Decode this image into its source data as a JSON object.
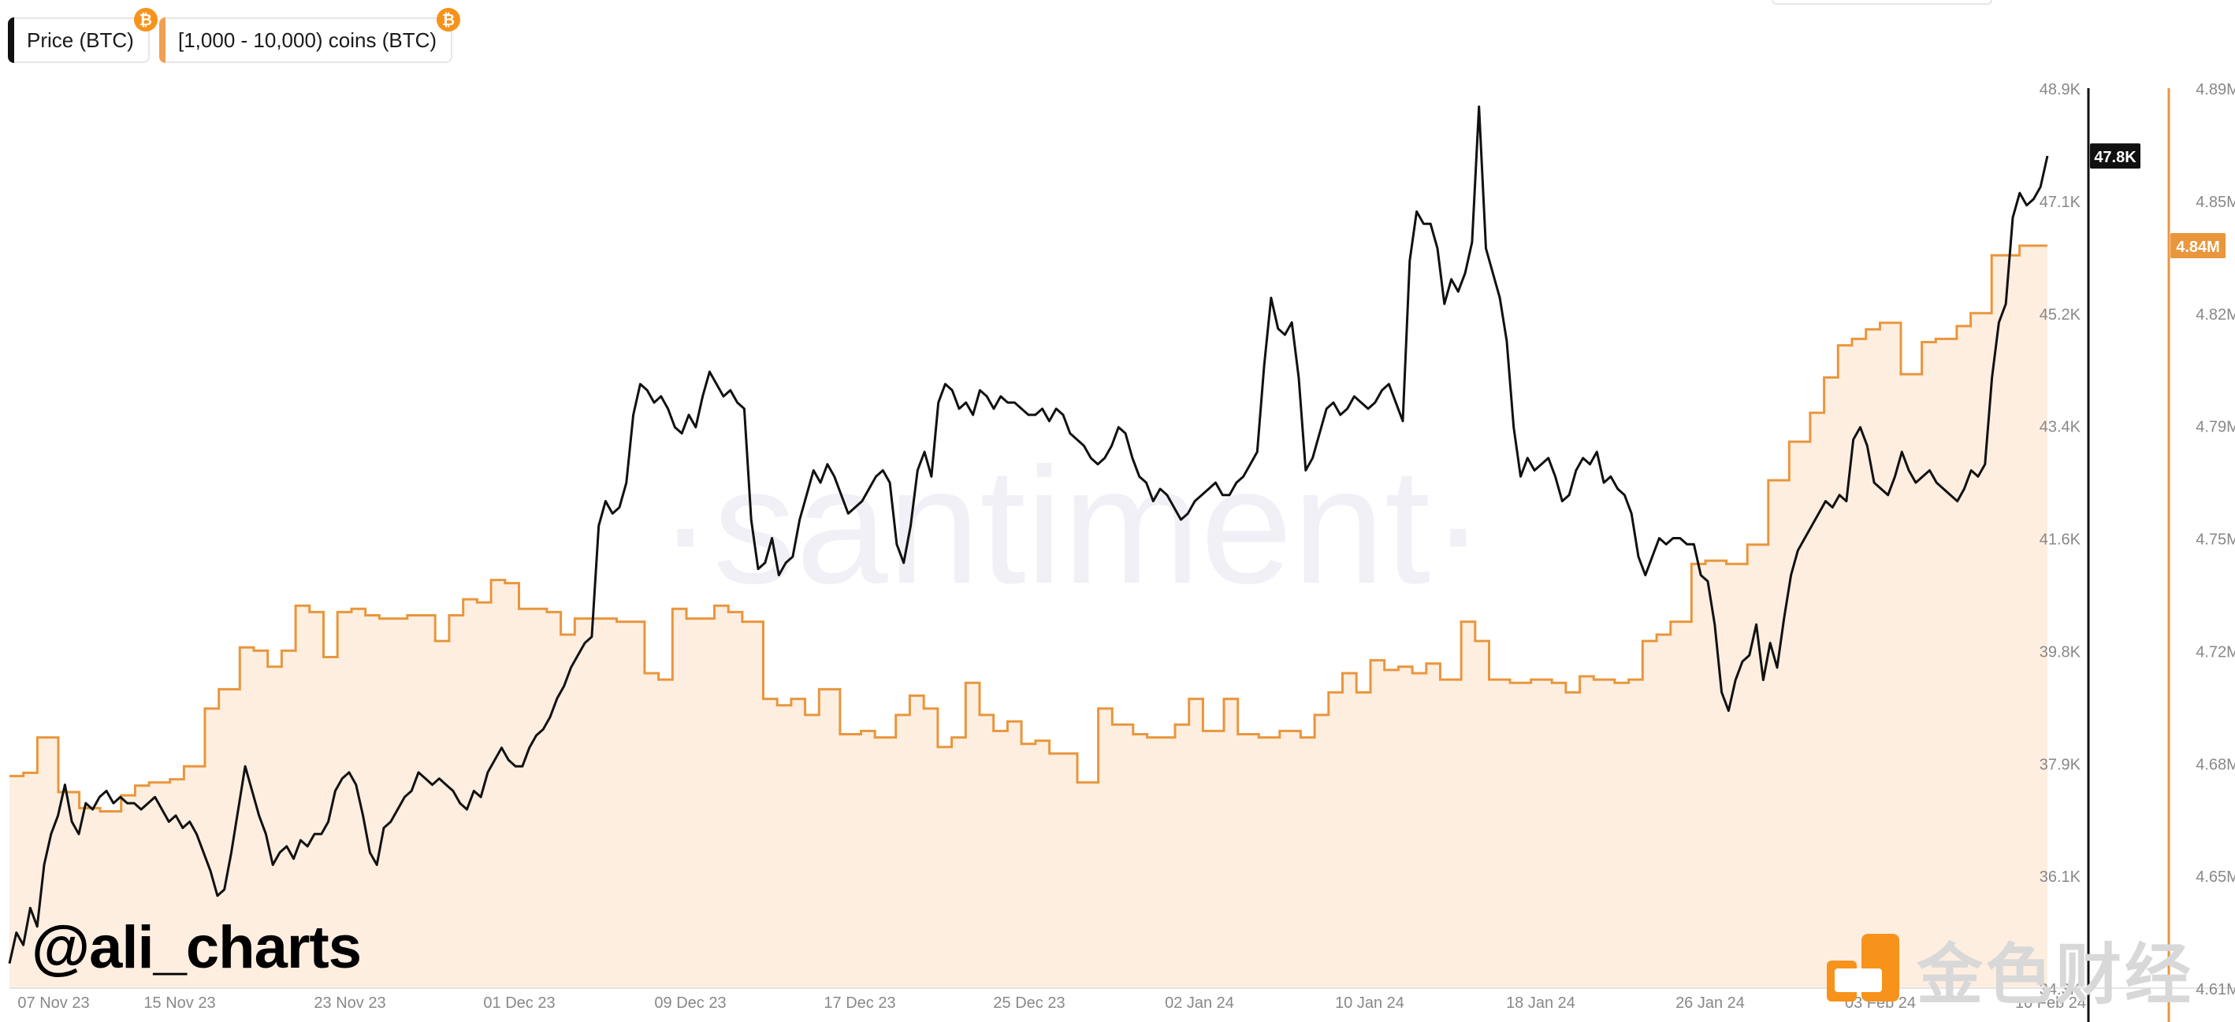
{
  "legend": [
    {
      "label": "Price (BTC)",
      "color": "#111111",
      "icon": "bitcoin-icon"
    },
    {
      "label": "[1,000 - 10,000) coins (BTC)",
      "color": "#f0a050",
      "icon": "bitcoin-icon"
    }
  ],
  "watermark_text": "@ali_charts",
  "background_watermark": "·santiment·",
  "brand_text": "金色财经",
  "chart_data": {
    "type": "line",
    "x_tick_labels": [
      "07 Nov 23",
      "15 Nov 23",
      "23 Nov 23",
      "01 Dec 23",
      "09 Dec 23",
      "17 Dec 23",
      "25 Dec 23",
      "02 Jan 24",
      "10 Jan 24",
      "18 Jan 24",
      "26 Jan 24",
      "03 Feb 24",
      "10 Feb 24"
    ],
    "y_left_ticks": [
      "48.9K",
      "47.1K",
      "45.2K",
      "43.4K",
      "41.6K",
      "39.8K",
      "37.9K",
      "36.1K",
      "34.3K"
    ],
    "y_right_ticks": [
      "4.89M",
      "4.85M",
      "4.82M",
      "4.79M",
      "4.75M",
      "4.72M",
      "4.68M",
      "4.65M",
      "4.61M"
    ],
    "y_left_range": [
      34300,
      48900
    ],
    "y_right_range": [
      4610000,
      4890000
    ],
    "current_price_label": "47.8K",
    "current_holdings_label": "4.84M",
    "series": [
      {
        "name": "Price (BTC)",
        "axis": "left",
        "color": "#111111",
        "values": [
          34700,
          35200,
          35000,
          35600,
          35300,
          36300,
          36800,
          37100,
          37600,
          37000,
          36800,
          37300,
          37200,
          37400,
          37500,
          37300,
          37400,
          37300,
          37300,
          37200,
          37300,
          37400,
          37200,
          37000,
          37100,
          36900,
          37000,
          36800,
          36500,
          36200,
          35800,
          35900,
          36500,
          37200,
          37900,
          37500,
          37100,
          36800,
          36300,
          36500,
          36600,
          36400,
          36700,
          36600,
          36800,
          36800,
          37000,
          37500,
          37700,
          37800,
          37600,
          37100,
          36500,
          36300,
          36900,
          37000,
          37200,
          37400,
          37500,
          37800,
          37700,
          37600,
          37700,
          37600,
          37500,
          37300,
          37200,
          37500,
          37400,
          37800,
          38000,
          38200,
          38000,
          37900,
          37900,
          38200,
          38400,
          38500,
          38700,
          39000,
          39200,
          39500,
          39700,
          39900,
          40000,
          41800,
          42200,
          42000,
          42100,
          42500,
          43600,
          44100,
          44000,
          43800,
          43900,
          43700,
          43400,
          43300,
          43600,
          43400,
          43900,
          44300,
          44100,
          43900,
          44000,
          43800,
          43700,
          41900,
          41100,
          41200,
          41600,
          41000,
          41200,
          41300,
          41900,
          42300,
          42700,
          42500,
          42800,
          42600,
          42300,
          42000,
          42100,
          42200,
          42400,
          42600,
          42700,
          42500,
          41500,
          41200,
          41800,
          42700,
          43000,
          42600,
          43800,
          44100,
          44000,
          43700,
          43800,
          43600,
          44000,
          43900,
          43700,
          43900,
          43800,
          43800,
          43700,
          43600,
          43600,
          43700,
          43500,
          43700,
          43600,
          43300,
          43200,
          43100,
          42900,
          42800,
          42900,
          43100,
          43400,
          43300,
          42900,
          42600,
          42500,
          42200,
          42400,
          42300,
          42100,
          41900,
          42000,
          42200,
          42300,
          42400,
          42500,
          42300,
          42300,
          42500,
          42600,
          42800,
          43000,
          44400,
          45500,
          45000,
          44900,
          45100,
          44200,
          42700,
          42900,
          43300,
          43700,
          43800,
          43600,
          43700,
          43900,
          43800,
          43700,
          43800,
          44000,
          44100,
          43800,
          43500,
          46100,
          46900,
          46700,
          46700,
          46300,
          45400,
          45800,
          45600,
          45900,
          46400,
          48600,
          46300,
          45900,
          45500,
          44800,
          43400,
          42600,
          42900,
          42700,
          42800,
          42900,
          42600,
          42200,
          42300,
          42700,
          42900,
          42800,
          43000,
          42500,
          42600,
          42400,
          42300,
          42000,
          41300,
          41000,
          41300,
          41600,
          41500,
          41600,
          41600,
          41500,
          41500,
          41000,
          40900,
          40200,
          39100,
          38800,
          39300,
          39600,
          39700,
          40200,
          39300,
          39900,
          39500,
          40300,
          41000,
          41400,
          41600,
          41800,
          42000,
          42200,
          42100,
          42300,
          42200,
          43200,
          43400,
          43100,
          42500,
          42400,
          42300,
          42600,
          43000,
          42700,
          42500,
          42600,
          42700,
          42500,
          42400,
          42300,
          42200,
          42400,
          42700,
          42600,
          42800,
          44200,
          45100,
          45400,
          46800,
          47200,
          47000,
          47100,
          47300,
          47800
        ]
      },
      {
        "name": "[1,000 - 10,000) coins (BTC)",
        "axis": "right",
        "color": "#e9963c",
        "values": [
          4676000,
          4676000,
          4677000,
          4677000,
          4688000,
          4688000,
          4688000,
          4671000,
          4671000,
          4671000,
          4666000,
          4666000,
          4666000,
          4665000,
          4665000,
          4665000,
          4670000,
          4670000,
          4673000,
          4673000,
          4674000,
          4674000,
          4674000,
          4675000,
          4675000,
          4679000,
          4679000,
          4679000,
          4697000,
          4697000,
          4703000,
          4703000,
          4703000,
          4716000,
          4716000,
          4715000,
          4715000,
          4710000,
          4710000,
          4715000,
          4715000,
          4729000,
          4729000,
          4727000,
          4727000,
          4713000,
          4713000,
          4727000,
          4727000,
          4728000,
          4728000,
          4726000,
          4726000,
          4725000,
          4725000,
          4725000,
          4725000,
          4726000,
          4726000,
          4726000,
          4726000,
          4718000,
          4718000,
          4726000,
          4726000,
          4731000,
          4731000,
          4730000,
          4730000,
          4737000,
          4737000,
          4736000,
          4736000,
          4728000,
          4728000,
          4728000,
          4728000,
          4727000,
          4727000,
          4720000,
          4720000,
          4725000,
          4725000,
          4725000,
          4725000,
          4725000,
          4725000,
          4724000,
          4724000,
          4724000,
          4724000,
          4708000,
          4708000,
          4706000,
          4706000,
          4728000,
          4728000,
          4725000,
          4725000,
          4725000,
          4725000,
          4729000,
          4729000,
          4727000,
          4727000,
          4724000,
          4724000,
          4724000,
          4700000,
          4700000,
          4698000,
          4698000,
          4700000,
          4700000,
          4695000,
          4695000,
          4703000,
          4703000,
          4703000,
          4689000,
          4689000,
          4689000,
          4690000,
          4690000,
          4688000,
          4688000,
          4688000,
          4695000,
          4695000,
          4701000,
          4701000,
          4697000,
          4697000,
          4685000,
          4685000,
          4688000,
          4688000,
          4705000,
          4705000,
          4695000,
          4695000,
          4690000,
          4690000,
          4693000,
          4693000,
          4686000,
          4686000,
          4687000,
          4687000,
          4683000,
          4683000,
          4683000,
          4683000,
          4674000,
          4674000,
          4674000,
          4697000,
          4697000,
          4692000,
          4692000,
          4692000,
          4689000,
          4689000,
          4688000,
          4688000,
          4688000,
          4688000,
          4692000,
          4692000,
          4700000,
          4700000,
          4690000,
          4690000,
          4690000,
          4700000,
          4700000,
          4689000,
          4689000,
          4689000,
          4688000,
          4688000,
          4688000,
          4690000,
          4690000,
          4690000,
          4688000,
          4688000,
          4695000,
          4695000,
          4702000,
          4702000,
          4708000,
          4708000,
          4702000,
          4702000,
          4712000,
          4712000,
          4709000,
          4709000,
          4710000,
          4710000,
          4708000,
          4708000,
          4711000,
          4711000,
          4706000,
          4706000,
          4706000,
          4724000,
          4724000,
          4718000,
          4718000,
          4706000,
          4706000,
          4706000,
          4705000,
          4705000,
          4705000,
          4706000,
          4706000,
          4706000,
          4705000,
          4705000,
          4702000,
          4702000,
          4707000,
          4707000,
          4706000,
          4706000,
          4706000,
          4705000,
          4705000,
          4706000,
          4706000,
          4718000,
          4718000,
          4720000,
          4720000,
          4724000,
          4724000,
          4724000,
          4742000,
          4742000,
          4743000,
          4743000,
          4743000,
          4742000,
          4742000,
          4742000,
          4748000,
          4748000,
          4748000,
          4768000,
          4768000,
          4768000,
          4780000,
          4780000,
          4780000,
          4789000,
          4789000,
          4800000,
          4800000,
          4810000,
          4810000,
          4812000,
          4812000,
          4815000,
          4815000,
          4817000,
          4817000,
          4817000,
          4801000,
          4801000,
          4801000,
          4811000,
          4811000,
          4812000,
          4812000,
          4812000,
          4816000,
          4816000,
          4820000,
          4820000,
          4820000,
          4838000,
          4838000,
          4838000,
          4838000,
          4841000,
          4841000,
          4841000,
          4841000,
          4841000
        ]
      }
    ]
  }
}
